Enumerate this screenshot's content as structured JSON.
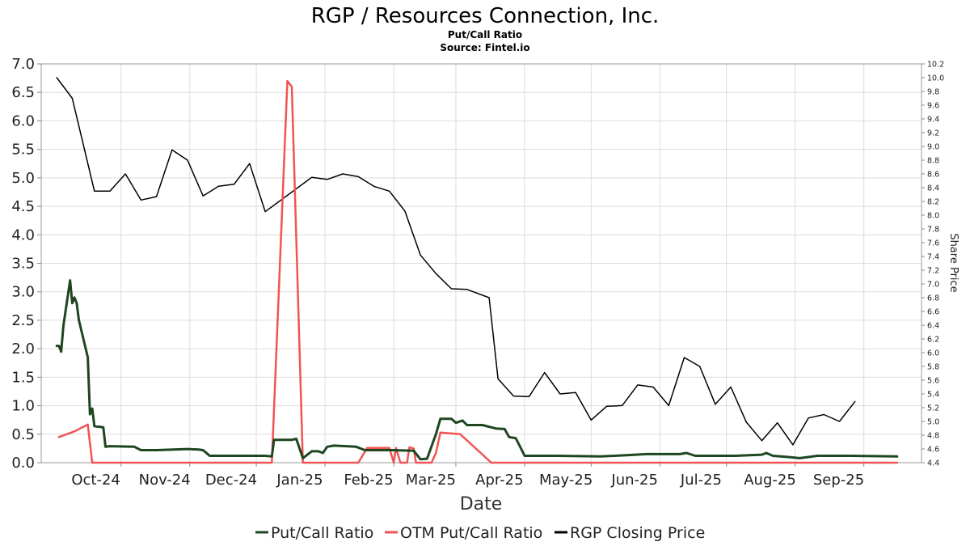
{
  "chart_data": {
    "type": "line",
    "title": "RGP / Resources Connection, Inc.",
    "subtitle": "Put/Call Ratio",
    "source": "Source: Fintel.io",
    "xlabel": "Date",
    "y2label": "Share Price",
    "ylim": [
      0,
      7.0
    ],
    "y2lim": [
      4.4,
      10.2
    ],
    "xlim": [
      "2024-09-10",
      "2025-10-12"
    ],
    "grid": true,
    "legend_position": "bottom",
    "x_ticks": [
      {
        "date": "2024-10-01",
        "label": "Oct-24"
      },
      {
        "date": "2024-11-01",
        "label": "Nov-24"
      },
      {
        "date": "2024-12-01",
        "label": "Dec-24"
      },
      {
        "date": "2025-01-01",
        "label": "Jan-25"
      },
      {
        "date": "2025-02-01",
        "label": "Feb-25"
      },
      {
        "date": "2025-03-01",
        "label": "Mar-25"
      },
      {
        "date": "2025-04-01",
        "label": "Apr-25"
      },
      {
        "date": "2025-05-01",
        "label": "May-25"
      },
      {
        "date": "2025-06-01",
        "label": "Jun-25"
      },
      {
        "date": "2025-07-01",
        "label": "Jul-25"
      },
      {
        "date": "2025-08-01",
        "label": "Aug-25"
      },
      {
        "date": "2025-09-01",
        "label": "Sep-25"
      }
    ],
    "y_ticks": [
      "0.0",
      "0.5",
      "1.0",
      "1.5",
      "2.0",
      "2.5",
      "3.0",
      "3.5",
      "4.0",
      "4.5",
      "5.0",
      "5.5",
      "6.0",
      "6.5",
      "7.0"
    ],
    "y2_ticks": [
      "4.4",
      "4.6",
      "4.8",
      "5.0",
      "5.2",
      "5.4",
      "5.6",
      "5.8",
      "6.0",
      "6.2",
      "6.4",
      "6.6",
      "6.8",
      "7.0",
      "7.2",
      "7.4",
      "7.6",
      "7.8",
      "8.0",
      "8.2",
      "8.4",
      "8.6",
      "8.8",
      "9.0",
      "9.2",
      "9.4",
      "9.6",
      "9.8",
      "10.0",
      "10.2"
    ],
    "series": [
      {
        "name": "Put/Call Ratio",
        "axis": "left",
        "color": "#1e4620",
        "width": 3,
        "points": [
          [
            "2024-09-17",
            2.05
          ],
          [
            "2024-09-18",
            2.05
          ],
          [
            "2024-09-19",
            1.95
          ],
          [
            "2024-09-20",
            2.4
          ],
          [
            "2024-09-23",
            3.2
          ],
          [
            "2024-09-24",
            2.8
          ],
          [
            "2024-09-25",
            2.9
          ],
          [
            "2024-09-26",
            2.8
          ],
          [
            "2024-09-27",
            2.5
          ],
          [
            "2024-10-01",
            1.85
          ],
          [
            "2024-10-02",
            0.85
          ],
          [
            "2024-10-03",
            0.95
          ],
          [
            "2024-10-04",
            0.64
          ],
          [
            "2024-10-08",
            0.62
          ],
          [
            "2024-10-09",
            0.28
          ],
          [
            "2024-10-11",
            0.29
          ],
          [
            "2024-10-22",
            0.28
          ],
          [
            "2024-10-25",
            0.22
          ],
          [
            "2024-10-28",
            0.22
          ],
          [
            "2024-11-01",
            0.22
          ],
          [
            "2024-11-15",
            0.24
          ],
          [
            "2024-11-20",
            0.23
          ],
          [
            "2024-11-22",
            0.22
          ],
          [
            "2024-11-25",
            0.12
          ],
          [
            "2024-12-10",
            0.12
          ],
          [
            "2024-12-20",
            0.12
          ],
          [
            "2024-12-23",
            0.11
          ],
          [
            "2024-12-24",
            0.4
          ],
          [
            "2025-01-01",
            0.4
          ],
          [
            "2025-01-03",
            0.42
          ],
          [
            "2025-01-06",
            0.08
          ],
          [
            "2025-01-10",
            0.2
          ],
          [
            "2025-01-13",
            0.2
          ],
          [
            "2025-01-15",
            0.17
          ],
          [
            "2025-01-17",
            0.28
          ],
          [
            "2025-01-20",
            0.3
          ],
          [
            "2025-01-30",
            0.28
          ],
          [
            "2025-02-03",
            0.22
          ],
          [
            "2025-02-15",
            0.22
          ],
          [
            "2025-02-25",
            0.21
          ],
          [
            "2025-02-28",
            0.06
          ],
          [
            "2025-03-03",
            0.07
          ],
          [
            "2025-03-07",
            0.5
          ],
          [
            "2025-03-09",
            0.77
          ],
          [
            "2025-03-14",
            0.77
          ],
          [
            "2025-03-16",
            0.7
          ],
          [
            "2025-03-19",
            0.74
          ],
          [
            "2025-03-21",
            0.66
          ],
          [
            "2025-03-28",
            0.66
          ],
          [
            "2025-04-03",
            0.6
          ],
          [
            "2025-04-07",
            0.59
          ],
          [
            "2025-04-09",
            0.45
          ],
          [
            "2025-04-12",
            0.43
          ],
          [
            "2025-04-14",
            0.28
          ],
          [
            "2025-04-16",
            0.12
          ],
          [
            "2025-05-01",
            0.12
          ],
          [
            "2025-05-20",
            0.11
          ],
          [
            "2025-06-01",
            0.13
          ],
          [
            "2025-06-10",
            0.15
          ],
          [
            "2025-06-25",
            0.15
          ],
          [
            "2025-06-28",
            0.17
          ],
          [
            "2025-07-02",
            0.12
          ],
          [
            "2025-07-20",
            0.12
          ],
          [
            "2025-08-01",
            0.14
          ],
          [
            "2025-08-03",
            0.17
          ],
          [
            "2025-08-06",
            0.12
          ],
          [
            "2025-08-13",
            0.1
          ],
          [
            "2025-08-18",
            0.08
          ],
          [
            "2025-08-22",
            0.1
          ],
          [
            "2025-08-26",
            0.12
          ],
          [
            "2025-09-01",
            0.12
          ],
          [
            "2025-09-10",
            0.12
          ],
          [
            "2025-10-01",
            0.11
          ]
        ]
      },
      {
        "name": "OTM Put/Call Ratio",
        "axis": "left",
        "color": "#f05454",
        "width": 2.5,
        "points": [
          [
            "2024-09-18",
            0.45
          ],
          [
            "2024-09-25",
            0.55
          ],
          [
            "2024-10-01",
            0.67
          ],
          [
            "2024-10-03",
            0.0
          ],
          [
            "2024-12-23",
            0.0
          ],
          [
            "2024-12-30",
            6.7
          ],
          [
            "2025-01-01",
            6.6
          ],
          [
            "2025-01-06",
            0.0
          ],
          [
            "2025-01-31",
            0.0
          ],
          [
            "2025-02-04",
            0.26
          ],
          [
            "2025-02-14",
            0.26
          ],
          [
            "2025-02-16",
            0.0
          ],
          [
            "2025-02-17",
            0.26
          ],
          [
            "2025-02-19",
            0.0
          ],
          [
            "2025-02-22",
            0.0
          ],
          [
            "2025-02-23",
            0.27
          ],
          [
            "2025-02-25",
            0.25
          ],
          [
            "2025-02-26",
            0.0
          ],
          [
            "2025-03-05",
            0.0
          ],
          [
            "2025-03-07",
            0.17
          ],
          [
            "2025-03-09",
            0.53
          ],
          [
            "2025-03-18",
            0.5
          ],
          [
            "2025-04-01",
            0.0
          ],
          [
            "2025-10-01",
            0.0
          ]
        ]
      },
      {
        "name": "RGP Closing Price",
        "axis": "right",
        "color": "#000000",
        "width": 1.5,
        "points": [
          [
            "2024-09-17",
            10.0
          ],
          [
            "2024-09-24",
            9.7
          ],
          [
            "2024-10-04",
            8.35
          ],
          [
            "2024-10-11",
            8.35
          ],
          [
            "2024-10-18",
            8.6
          ],
          [
            "2024-10-25",
            8.22
          ],
          [
            "2024-11-01",
            8.27
          ],
          [
            "2024-11-08",
            8.95
          ],
          [
            "2024-11-15",
            8.8
          ],
          [
            "2024-11-22",
            8.28
          ],
          [
            "2024-11-29",
            8.42
          ],
          [
            "2024-12-06",
            8.45
          ],
          [
            "2024-12-13",
            8.75
          ],
          [
            "2024-12-20",
            8.05
          ],
          [
            "2025-01-10",
            8.55
          ],
          [
            "2025-01-17",
            8.52
          ],
          [
            "2025-01-24",
            8.6
          ],
          [
            "2025-01-31",
            8.56
          ],
          [
            "2025-02-07",
            8.42
          ],
          [
            "2025-02-14",
            8.35
          ],
          [
            "2025-02-21",
            8.06
          ],
          [
            "2025-02-28",
            7.42
          ],
          [
            "2025-03-07",
            7.15
          ],
          [
            "2025-03-14",
            6.93
          ],
          [
            "2025-03-21",
            6.92
          ],
          [
            "2025-03-31",
            6.8
          ],
          [
            "2025-04-04",
            5.62
          ],
          [
            "2025-04-11",
            5.37
          ],
          [
            "2025-04-18",
            5.36
          ],
          [
            "2025-04-25",
            5.71
          ],
          [
            "2025-05-02",
            5.4
          ],
          [
            "2025-05-09",
            5.42
          ],
          [
            "2025-05-16",
            5.02
          ],
          [
            "2025-05-23",
            5.22
          ],
          [
            "2025-05-30",
            5.23
          ],
          [
            "2025-06-06",
            5.53
          ],
          [
            "2025-06-13",
            5.5
          ],
          [
            "2025-06-20",
            5.23
          ],
          [
            "2025-06-27",
            5.93
          ],
          [
            "2025-07-04",
            5.8
          ],
          [
            "2025-07-11",
            5.25
          ],
          [
            "2025-07-18",
            5.5
          ],
          [
            "2025-07-25",
            4.99
          ],
          [
            "2025-08-01",
            4.72
          ],
          [
            "2025-08-08",
            4.98
          ],
          [
            "2025-08-15",
            4.66
          ],
          [
            "2025-08-22",
            5.05
          ],
          [
            "2025-08-29",
            5.1
          ],
          [
            "2025-09-05",
            5.0
          ],
          [
            "2025-09-12",
            5.29
          ]
        ]
      }
    ]
  }
}
